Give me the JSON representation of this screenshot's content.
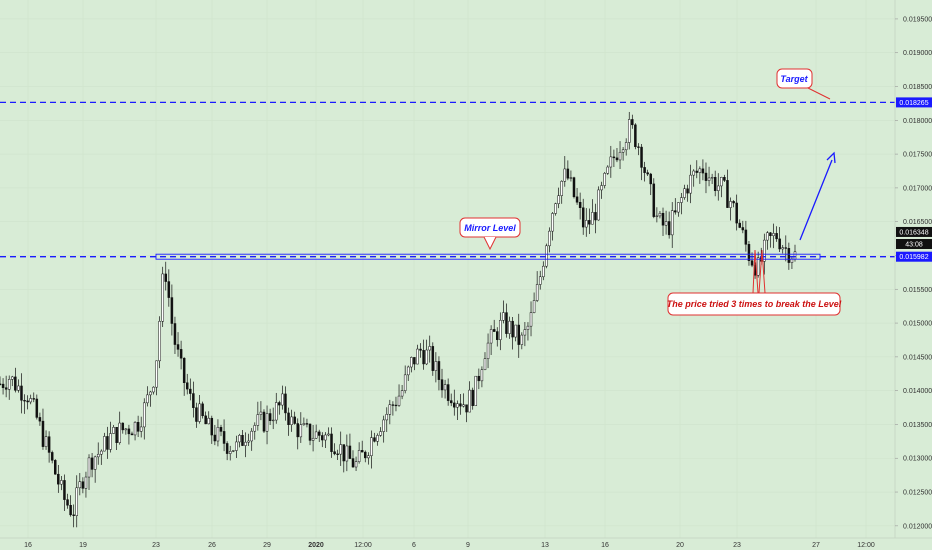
{
  "chart_data": {
    "type": "candlestick",
    "x_ticks": [
      "16",
      "19",
      "23",
      "26",
      "29",
      "2020",
      "12:00",
      "6",
      "9",
      "13",
      "16",
      "20",
      "23",
      "24",
      "27",
      "12:00"
    ],
    "y_ticks": [
      "0.012000",
      "0.012500",
      "0.013000",
      "0.013500",
      "0.014000",
      "0.014500",
      "0.015000",
      "0.015500",
      "0.016000",
      "0.016500",
      "0.017000",
      "0.017500",
      "0.018000",
      "0.018500",
      "0.019000",
      "0.019500"
    ],
    "ylim": [
      0.01182,
      0.01978
    ],
    "price_tags": [
      {
        "label": "0.018265",
        "value": 0.018265,
        "bg": "#1a1aff",
        "fg": "#ffffff"
      },
      {
        "label": "0.016348",
        "value": 0.016348,
        "bg": "#111111",
        "fg": "#ffffff"
      },
      {
        "label": "43:08",
        "value": 0.01617,
        "bg": "#111111",
        "fg": "#ffffff"
      },
      {
        "label": "0.015982",
        "value": 0.015982,
        "bg": "#1a1aff",
        "fg": "#ffffff"
      }
    ],
    "levels": [
      {
        "name": "target",
        "value": 0.018265,
        "style": "dashed",
        "color": "#1a1aff"
      },
      {
        "name": "mirror",
        "value": 0.015982,
        "style": "dashed",
        "color": "#1a1aff"
      }
    ],
    "annotations": [
      {
        "name": "target-callout",
        "text": "Target"
      },
      {
        "name": "mirror-callout",
        "text": "Mirror Level"
      },
      {
        "name": "tries-callout",
        "text": "The price tried 3 times to break the Level"
      }
    ],
    "close_path": [
      [
        0.0141,
        0.0142,
        0.01405,
        0.01395,
        0.0136,
        0.0132,
        0.0128,
        0.0124,
        0.0122,
        0.0127,
        0.013,
        0.0131,
        0.0133,
        0.0134,
        0.01345,
        0.0135,
        0.0138,
        0.0143,
        0.0159,
        0.0148,
        0.0142,
        0.0138,
        0.0136,
        0.0134,
        0.0133,
        0.0132,
        0.01315,
        0.0134,
        0.0135,
        0.01355,
        0.0137,
        0.0138,
        0.0135,
        0.0134,
        0.01335,
        0.01335,
        0.0133,
        0.0132,
        0.013,
        0.0129,
        0.0131,
        0.0134,
        0.0136,
        0.0138,
        0.014,
        0.0144,
        0.0146,
        0.0145,
        0.0142,
        0.014,
        0.0139,
        0.0138,
        0.014,
        0.0146,
        0.0148,
        0.015,
        0.0149,
        0.0147,
        0.015,
        0.0156,
        0.0164,
        0.017,
        0.0172,
        0.0168,
        0.0164,
        0.0166,
        0.017,
        0.0174,
        0.0177,
        0.0179,
        0.0176,
        0.017,
        0.0165,
        0.0164,
        0.0166,
        0.017,
        0.0172,
        0.0173,
        0.0171,
        0.017,
        0.0168,
        0.0164,
        0.016,
        0.0158,
        0.0162,
        0.0163,
        0.0161,
        0.016
      ]
    ]
  }
}
